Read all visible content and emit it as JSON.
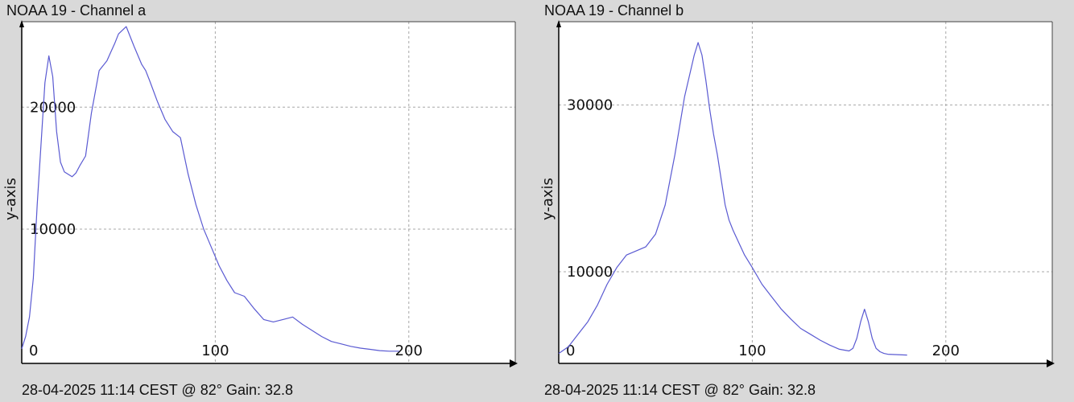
{
  "chart_data": [
    {
      "type": "line",
      "title": "NOAA 19 - Channel a",
      "footer": "28-04-2025 11:14 CEST @ 82° Gain: 32.8",
      "ylabel": "y-axis",
      "xlabel": "",
      "xlim": [
        0,
        255
      ],
      "ylim": [
        -1000,
        27000
      ],
      "xticks": [
        0,
        100,
        200
      ],
      "yticks": [
        10000,
        20000
      ],
      "grid": true,
      "line_color": "#5a5ad2",
      "x": [
        0,
        2,
        4,
        6,
        8,
        10,
        12,
        14,
        16,
        18,
        20,
        22,
        24,
        26,
        28,
        30,
        33,
        36,
        40,
        44,
        46,
        48,
        50,
        54,
        58,
        62,
        64,
        66,
        70,
        74,
        78,
        82,
        86,
        90,
        94,
        98,
        102,
        106,
        110,
        115,
        120,
        125,
        130,
        135,
        140,
        145,
        150,
        155,
        160,
        165,
        170,
        175,
        180,
        185,
        190,
        195
      ],
      "y": [
        200,
        1200,
        2800,
        6000,
        12000,
        17000,
        22000,
        24200,
        22500,
        18000,
        15500,
        14700,
        14500,
        14300,
        14600,
        15200,
        16000,
        19500,
        23000,
        23800,
        24500,
        25200,
        26000,
        26600,
        25000,
        23500,
        23000,
        22200,
        20500,
        19000,
        18000,
        17500,
        14500,
        12000,
        10000,
        8500,
        7000,
        5800,
        4800,
        4500,
        3500,
        2600,
        2400,
        2600,
        2800,
        2200,
        1700,
        1200,
        800,
        600,
        400,
        250,
        150,
        50,
        0,
        0
      ]
    },
    {
      "type": "line",
      "title": "NOAA 19 - Channel b",
      "footer": "28-04-2025 11:14 CEST @ 82° Gain: 32.8",
      "ylabel": "y-axis",
      "xlabel": "",
      "xlim": [
        0,
        255
      ],
      "ylim": [
        -1000,
        40000
      ],
      "xticks": [
        0,
        100,
        200
      ],
      "yticks": [
        10000,
        30000
      ],
      "grid": true,
      "line_color": "#5a5ad2",
      "x": [
        0,
        5,
        10,
        15,
        20,
        25,
        30,
        35,
        40,
        45,
        50,
        55,
        60,
        65,
        70,
        72,
        74,
        76,
        78,
        80,
        82,
        84,
        86,
        88,
        90,
        93,
        96,
        100,
        105,
        110,
        115,
        120,
        125,
        130,
        135,
        140,
        145,
        150,
        152,
        154,
        156,
        158,
        160,
        162,
        164,
        166,
        168,
        170,
        175,
        180
      ],
      "y": [
        200,
        1000,
        2500,
        4000,
        6000,
        8500,
        10500,
        12000,
        12500,
        13000,
        14500,
        18000,
        24000,
        31000,
        36000,
        37500,
        36000,
        33000,
        29500,
        26500,
        24000,
        21000,
        18000,
        16200,
        15000,
        13500,
        12000,
        10500,
        8500,
        7000,
        5500,
        4300,
        3200,
        2500,
        1800,
        1200,
        700,
        500,
        800,
        2000,
        4000,
        5500,
        4000,
        2000,
        800,
        400,
        200,
        100,
        50,
        0
      ]
    }
  ]
}
